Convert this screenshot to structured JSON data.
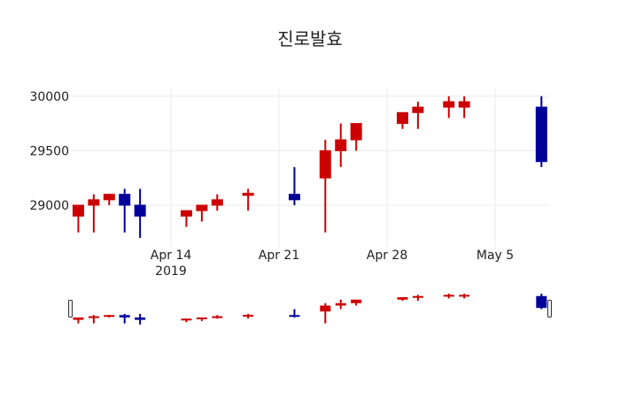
{
  "chart_data": {
    "type": "candlestick",
    "title": "진로발효",
    "xlabel": "",
    "ylabel": "",
    "ylim": [
      28650,
      30080
    ],
    "grid": true,
    "legend": null,
    "colors": {
      "increasing": "#cc0000",
      "decreasing": "#000099"
    },
    "x_ticks": [
      {
        "label": "Apr 14",
        "sublabel": "2019",
        "date": "2019-04-14"
      },
      {
        "label": "Apr 21",
        "sublabel": "",
        "date": "2019-04-21"
      },
      {
        "label": "Apr 28",
        "sublabel": "",
        "date": "2019-04-28"
      },
      {
        "label": "May 5",
        "sublabel": "",
        "date": "2019-05-05"
      }
    ],
    "y_ticks": [
      29000,
      29500,
      30000
    ],
    "candles": [
      {
        "date": "2019-04-08",
        "open": 28900,
        "high": 29000,
        "low": 28750,
        "close": 29000
      },
      {
        "date": "2019-04-09",
        "open": 29000,
        "high": 29100,
        "low": 28750,
        "close": 29050
      },
      {
        "date": "2019-04-10",
        "open": 29050,
        "high": 29100,
        "low": 29000,
        "close": 29100
      },
      {
        "date": "2019-04-11",
        "open": 29100,
        "high": 29150,
        "low": 28750,
        "close": 29000
      },
      {
        "date": "2019-04-12",
        "open": 29000,
        "high": 29150,
        "low": 28700,
        "close": 28900
      },
      {
        "date": "2019-04-15",
        "open": 28900,
        "high": 28950,
        "low": 28800,
        "close": 28950
      },
      {
        "date": "2019-04-16",
        "open": 28950,
        "high": 29000,
        "low": 28850,
        "close": 29000
      },
      {
        "date": "2019-04-17",
        "open": 29000,
        "high": 29100,
        "low": 28950,
        "close": 29050
      },
      {
        "date": "2019-04-19",
        "open": 29090,
        "high": 29150,
        "low": 28950,
        "close": 29110
      },
      {
        "date": "2019-04-22",
        "open": 29100,
        "high": 29350,
        "low": 29000,
        "close": 29050
      },
      {
        "date": "2019-04-24",
        "open": 29250,
        "high": 29600,
        "low": 28750,
        "close": 29500
      },
      {
        "date": "2019-04-25",
        "open": 29500,
        "high": 29750,
        "low": 29350,
        "close": 29600
      },
      {
        "date": "2019-04-26",
        "open": 29600,
        "high": 29750,
        "low": 29500,
        "close": 29750
      },
      {
        "date": "2019-04-29",
        "open": 29750,
        "high": 29850,
        "low": 29700,
        "close": 29850
      },
      {
        "date": "2019-04-30",
        "open": 29850,
        "high": 29950,
        "low": 29700,
        "close": 29900
      },
      {
        "date": "2019-05-02",
        "open": 29900,
        "high": 30000,
        "low": 29800,
        "close": 29950
      },
      {
        "date": "2019-05-03",
        "open": 29900,
        "high": 30000,
        "low": 29800,
        "close": 29950
      },
      {
        "date": "2019-05-08",
        "open": 29900,
        "high": 30000,
        "low": 29350,
        "close": 29400
      }
    ],
    "rangeslider": true
  }
}
